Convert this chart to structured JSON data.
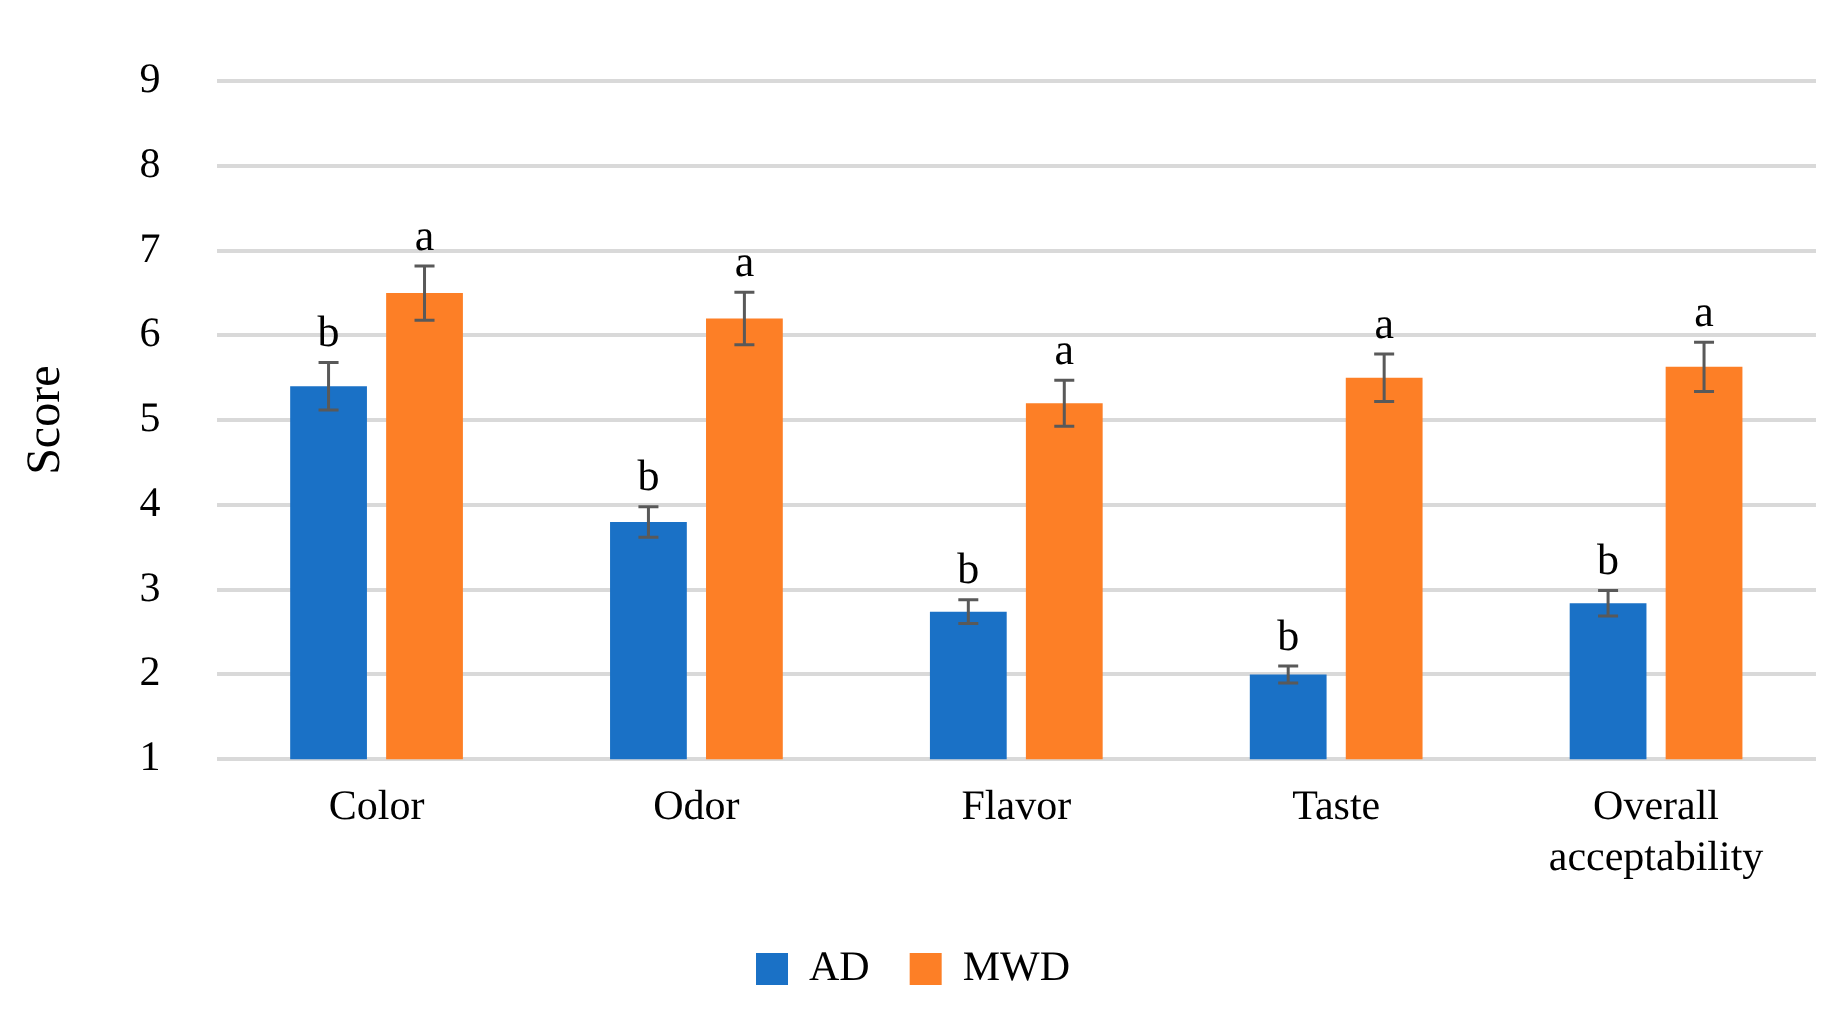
{
  "chart_data": {
    "type": "bar",
    "ylabel": "Score",
    "categories": [
      "Color",
      "Odor",
      "Flavor",
      "Taste",
      "Overall acceptability"
    ],
    "series": [
      {
        "name": "AD",
        "color": "#1a71c6",
        "values": [
          5.4,
          3.8,
          2.74,
          2.0,
          2.84
        ],
        "errors": [
          0.28,
          0.18,
          0.14,
          0.1,
          0.15
        ],
        "value_labels": [
          "b",
          "b",
          "b",
          "b",
          "b"
        ]
      },
      {
        "name": "MWD",
        "color": "#fd7f26",
        "values": [
          6.5,
          6.2,
          5.2,
          5.5,
          5.63
        ],
        "errors": [
          0.32,
          0.31,
          0.27,
          0.28,
          0.29
        ],
        "value_labels": [
          "a",
          "a",
          "a",
          "a",
          "a"
        ]
      }
    ],
    "ylim": [
      1,
      9
    ],
    "yticks": [
      1,
      2,
      3,
      4,
      5,
      6,
      7,
      8,
      9
    ],
    "grid": "y",
    "legend": "bottom"
  }
}
